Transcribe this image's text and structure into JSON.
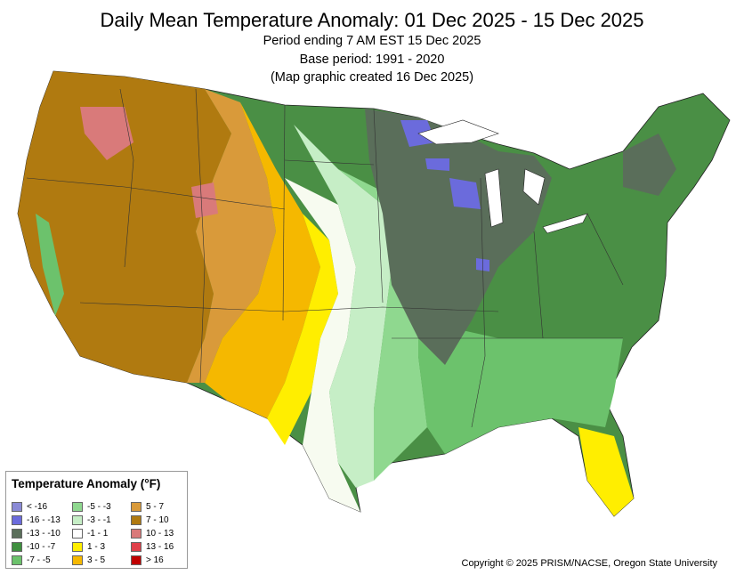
{
  "header": {
    "title": "Daily Mean Temperature Anomaly: 01 Dec 2025 - 15 Dec 2025",
    "line1": "Period ending 7 AM EST 15 Dec 2025",
    "line2": "Base period: 1991 - 2020",
    "line3": "(Map graphic created 16 Dec 2025)"
  },
  "legend": {
    "title": "Temperature Anomaly (°F)",
    "items": [
      {
        "label": "< -16",
        "color": "#8a8ad6"
      },
      {
        "label": "-16 - -13",
        "color": "#6b6bdc"
      },
      {
        "label": "-13 - -10",
        "color": "#5a6e5a"
      },
      {
        "label": "-10 - -7",
        "color": "#3f8f3f"
      },
      {
        "label": "-7 - -5",
        "color": "#6cc26c"
      },
      {
        "label": "-5 - -3",
        "color": "#8fd88f"
      },
      {
        "label": "-3 - -1",
        "color": "#c6eec6"
      },
      {
        "label": "-1 - 1",
        "color": "#ffffff"
      },
      {
        "label": "1 - 3",
        "color": "#ffee00"
      },
      {
        "label": "3 - 5",
        "color": "#f5b800"
      },
      {
        "label": "5 - 7",
        "color": "#d99a3a"
      },
      {
        "label": "7 - 10",
        "color": "#b07a10"
      },
      {
        "label": "10 - 13",
        "color": "#d97a7a"
      },
      {
        "label": "13 - 16",
        "color": "#e0404a"
      },
      {
        "label": "> 16",
        "color": "#c00000"
      }
    ]
  },
  "copyright": "Copyright © 2025 PRISM/NACSE, Oregon State University"
}
